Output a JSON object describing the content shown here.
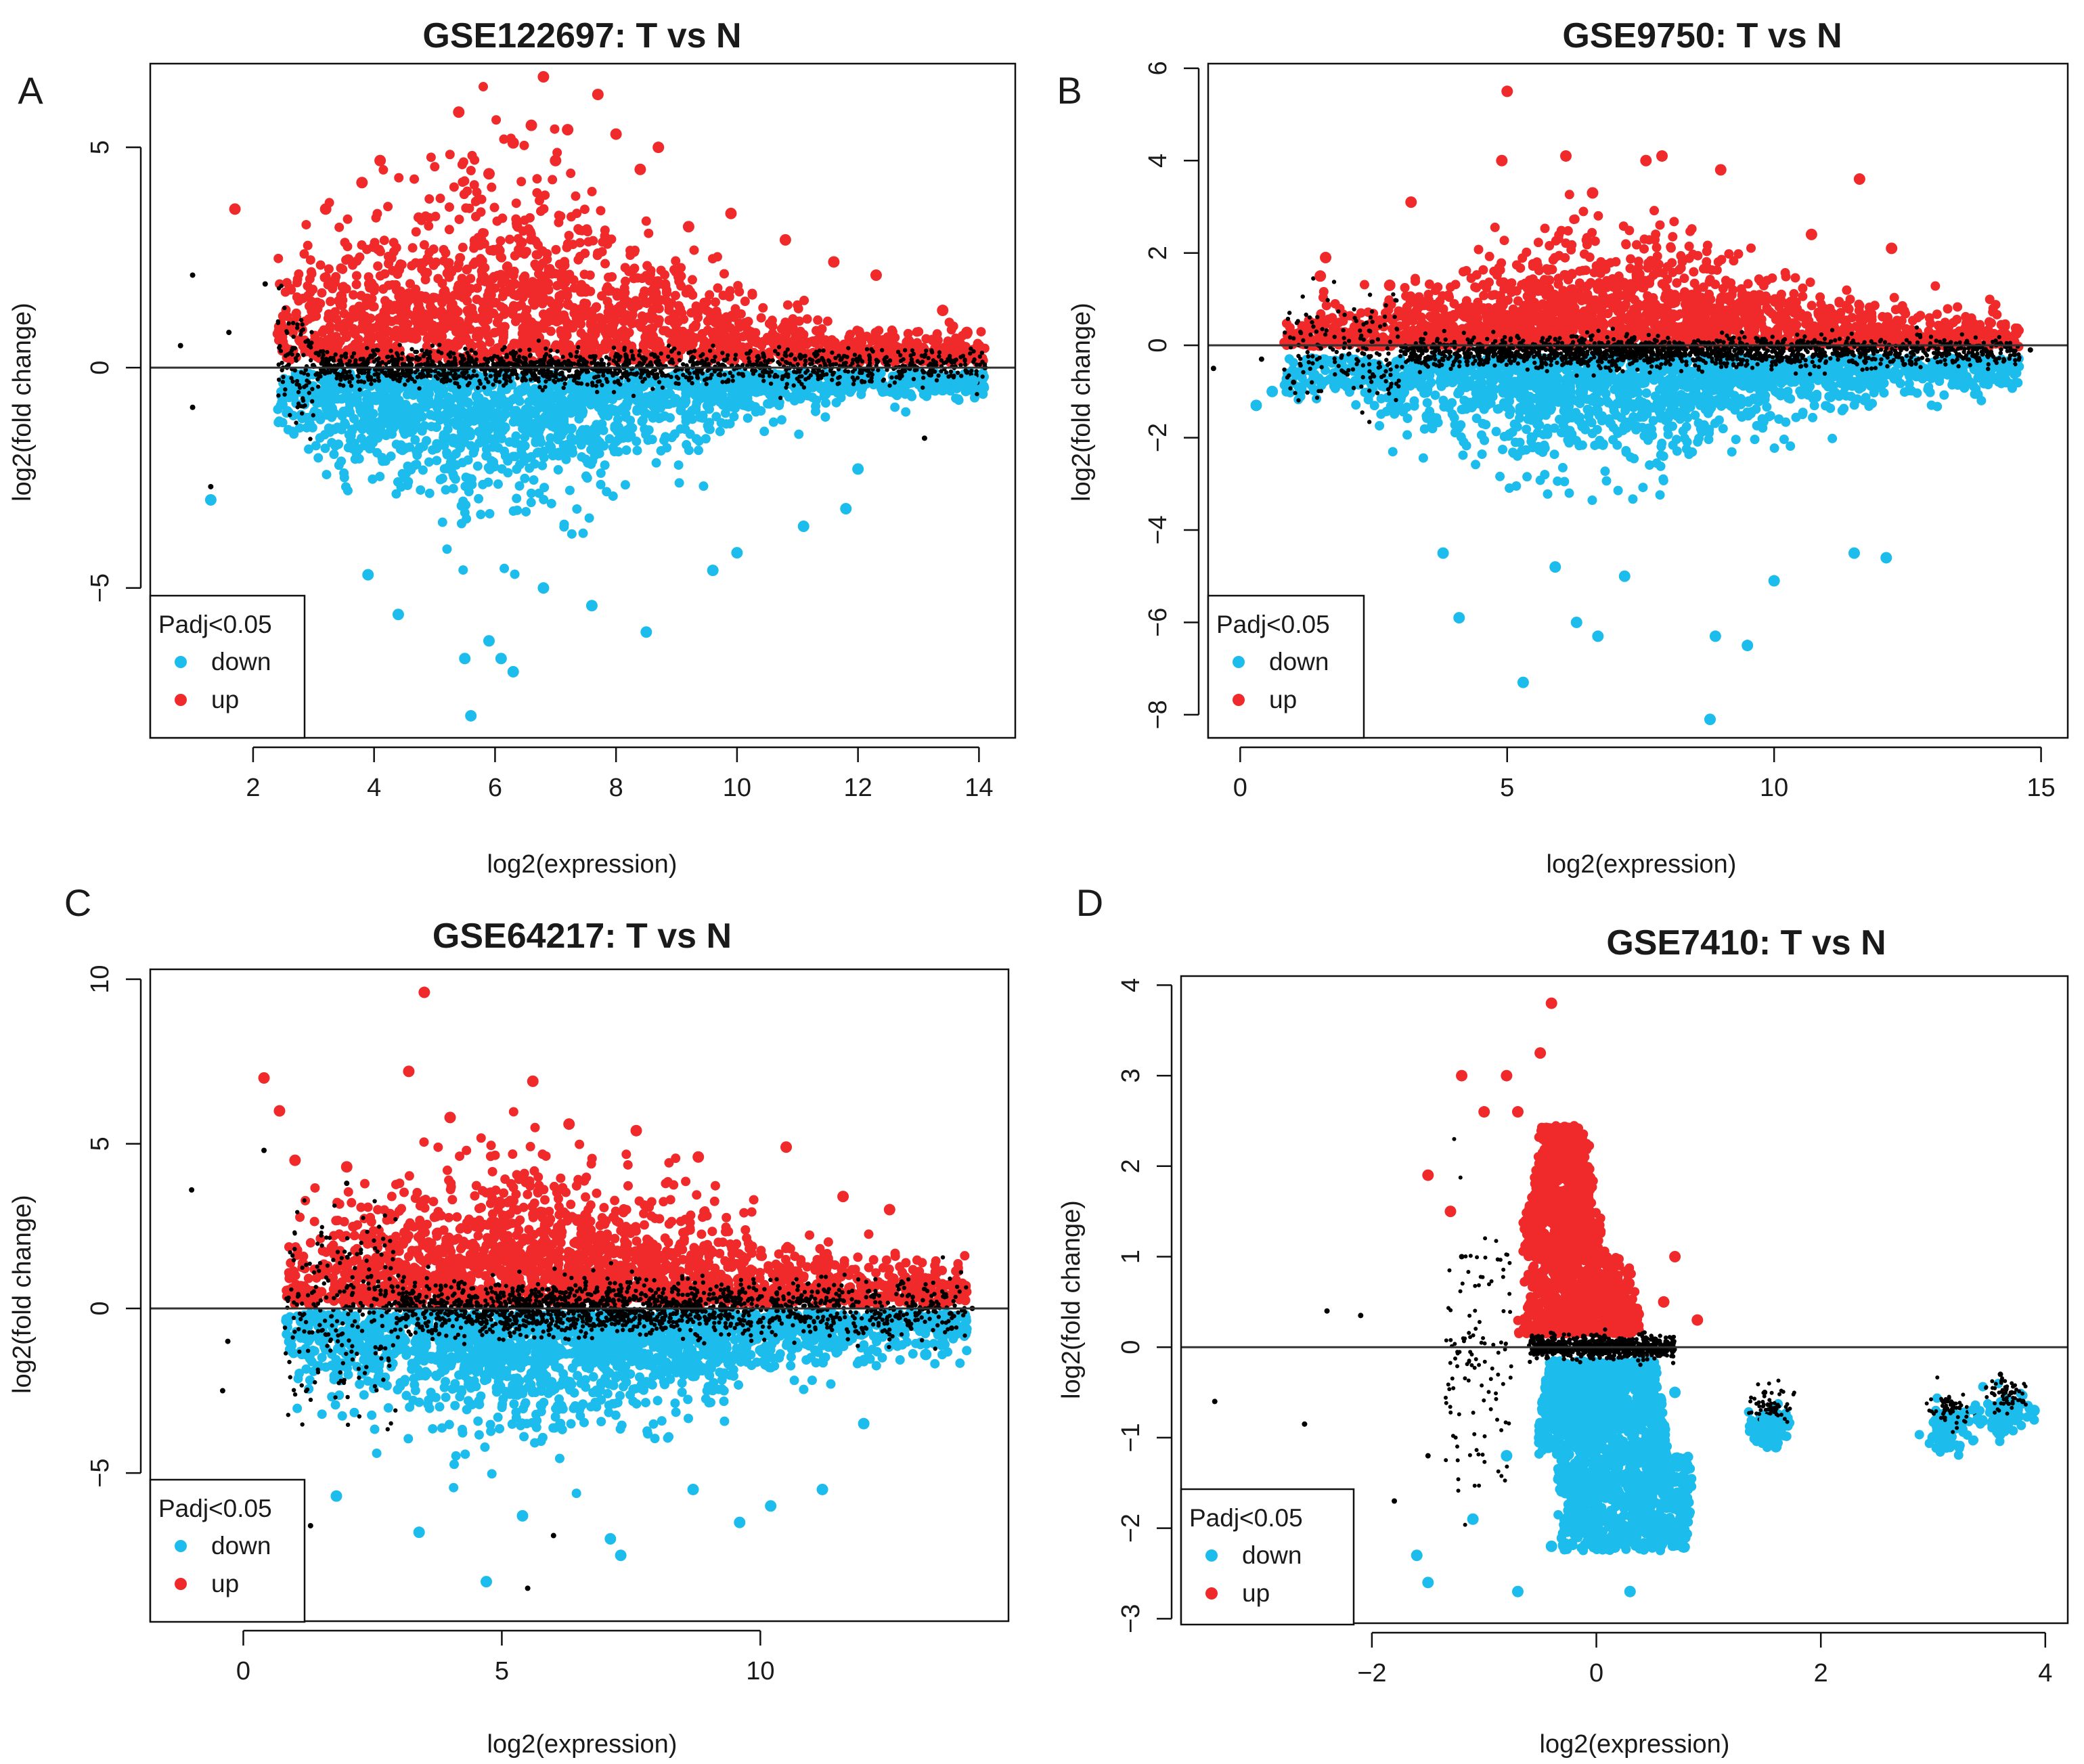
{
  "figure": {
    "panels": [
      {
        "letter": "A",
        "title": "GSE122697: T vs N",
        "xlabel": "log2(expression)",
        "ylabel": "log2(fold change)",
        "legend": {
          "title": "Padj<0.05",
          "entries": [
            {
              "label": "down",
              "color": "#1cbcec"
            },
            {
              "label": "up",
              "color": "#f02a2a"
            }
          ]
        }
      },
      {
        "letter": "B",
        "title": "GSE9750: T vs N",
        "xlabel": "log2(expression)",
        "ylabel": "log2(fold change)",
        "legend": {
          "title": "Padj<0.05",
          "entries": [
            {
              "label": "down",
              "color": "#1cbcec"
            },
            {
              "label": "up",
              "color": "#f02a2a"
            }
          ]
        }
      },
      {
        "letter": "C",
        "title": "GSE64217: T vs N",
        "xlabel": "log2(expression)",
        "ylabel": "log2(fold change)",
        "legend": {
          "title": "Padj<0.05",
          "entries": [
            {
              "label": "down",
              "color": "#1cbcec"
            },
            {
              "label": "up",
              "color": "#f02a2a"
            }
          ]
        }
      },
      {
        "letter": "D",
        "title": "GSE7410: T vs N",
        "xlabel": "log2(expression)",
        "ylabel": "log2(fold change)",
        "legend": {
          "title": "Padj<0.05",
          "entries": [
            {
              "label": "down",
              "color": "#1cbcec"
            },
            {
              "label": "up",
              "color": "#f02a2a"
            }
          ]
        }
      }
    ]
  },
  "chart_data": [
    {
      "type": "scatter",
      "kind": "MA-plot",
      "panel": "A",
      "title": "GSE122697: T vs N",
      "xlabel": "log2(expression)",
      "ylabel": "log2(fold change)",
      "xlim": [
        0.3,
        14.6
      ],
      "ylim": [
        -8.4,
        6.9
      ],
      "xticks": [
        2,
        4,
        6,
        8,
        10,
        12,
        14
      ],
      "yticks": [
        -5,
        0,
        5
      ],
      "reference_line_y": 0,
      "legend_position": "bottom-left",
      "colors": {
        "up": "#f02a2a",
        "down": "#1cbcec",
        "ns": "#000000"
      },
      "series": [
        {
          "name": "up",
          "points": [
            [
              6.8,
              6.6
            ],
            [
              7.7,
              6.2
            ],
            [
              5.4,
              5.8
            ],
            [
              6.6,
              5.5
            ],
            [
              7.2,
              5.4
            ],
            [
              6.3,
              5.1
            ],
            [
              4.1,
              4.7
            ],
            [
              8.0,
              5.3
            ],
            [
              8.7,
              5.0
            ],
            [
              1.7,
              3.6
            ],
            [
              9.9,
              3.5
            ],
            [
              10.8,
              2.9
            ],
            [
              12.3,
              2.1
            ],
            [
              13.4,
              1.3
            ],
            [
              13.8,
              0.8
            ],
            [
              11.6,
              2.4
            ],
            [
              5.9,
              4.4
            ],
            [
              8.4,
              4.5
            ],
            [
              3.2,
              3.6
            ],
            [
              9.2,
              3.2
            ],
            [
              3.8,
              4.2
            ],
            [
              7.0,
              4.7
            ]
          ]
        },
        {
          "name": "down",
          "points": [
            [
              5.6,
              -7.9
            ],
            [
              5.5,
              -6.6
            ],
            [
              6.1,
              -6.6
            ],
            [
              6.3,
              -6.9
            ],
            [
              8.5,
              -6.0
            ],
            [
              4.4,
              -5.6
            ],
            [
              5.9,
              -6.2
            ],
            [
              1.3,
              -3.0
            ],
            [
              10.0,
              -4.2
            ],
            [
              9.6,
              -4.6
            ],
            [
              7.6,
              -5.4
            ],
            [
              12.0,
              -2.3
            ],
            [
              11.8,
              -3.2
            ],
            [
              13.4,
              -0.5
            ],
            [
              13.9,
              -0.3
            ],
            [
              11.1,
              -3.6
            ],
            [
              3.9,
              -4.7
            ],
            [
              6.8,
              -5.0
            ]
          ]
        },
        {
          "name": "ns",
          "points": [
            [
              1.0,
              -0.9
            ],
            [
              0.8,
              0.5
            ],
            [
              1.0,
              2.1
            ],
            [
              1.3,
              -2.7
            ],
            [
              13.1,
              -1.6
            ],
            [
              13.8,
              -0.1
            ],
            [
              14.1,
              0.0
            ],
            [
              1.6,
              0.8
            ],
            [
              2.2,
              1.9
            ]
          ]
        }
      ]
    },
    {
      "type": "scatter",
      "kind": "MA-plot",
      "panel": "B",
      "title": "GSE9750: T vs N",
      "xlabel": "log2(expression)",
      "ylabel": "log2(fold change)",
      "xlim": [
        -0.6,
        15.5
      ],
      "ylim": [
        -8.5,
        6.1
      ],
      "xticks": [
        0,
        5,
        10,
        15
      ],
      "yticks": [
        -8,
        -6,
        -4,
        -2,
        0,
        2,
        4,
        6
      ],
      "reference_line_y": 0,
      "legend_position": "bottom-left",
      "colors": {
        "up": "#f02a2a",
        "down": "#1cbcec",
        "ns": "#000000"
      },
      "series": [
        {
          "name": "up",
          "points": [
            [
              5.0,
              5.5
            ],
            [
              6.1,
              4.1
            ],
            [
              7.9,
              4.1
            ],
            [
              7.6,
              4.0
            ],
            [
              9.0,
              3.8
            ],
            [
              11.6,
              3.6
            ],
            [
              4.9,
              4.0
            ],
            [
              6.6,
              3.3
            ],
            [
              3.2,
              3.1
            ],
            [
              12.2,
              2.1
            ],
            [
              1.6,
              1.9
            ],
            [
              1.5,
              1.5
            ],
            [
              2.8,
              1.3
            ],
            [
              10.7,
              2.4
            ]
          ]
        },
        {
          "name": "down",
          "points": [
            [
              8.8,
              -8.1
            ],
            [
              5.3,
              -7.3
            ],
            [
              6.3,
              -6.0
            ],
            [
              6.7,
              -6.3
            ],
            [
              9.5,
              -6.5
            ],
            [
              8.9,
              -6.3
            ],
            [
              4.1,
              -5.9
            ],
            [
              10.0,
              -5.1
            ],
            [
              12.1,
              -4.6
            ],
            [
              11.5,
              -4.5
            ],
            [
              0.3,
              -1.3
            ],
            [
              0.6,
              -1.0
            ],
            [
              14.4,
              -0.5
            ],
            [
              3.8,
              -4.5
            ],
            [
              5.9,
              -4.8
            ],
            [
              7.2,
              -5.0
            ]
          ]
        },
        {
          "name": "ns",
          "points": [
            [
              -0.5,
              -0.5
            ],
            [
              0.4,
              -0.3
            ],
            [
              14.8,
              -0.1
            ],
            [
              1.0,
              -0.8
            ],
            [
              14.5,
              -0.2
            ]
          ]
        }
      ]
    },
    {
      "type": "scatter",
      "kind": "MA-plot",
      "panel": "C",
      "title": "GSE64217: T vs N",
      "xlabel": "log2(expression)",
      "ylabel": "log2(fold change)",
      "xlim": [
        -1.8,
        14.8
      ],
      "ylim": [
        -9.5,
        10.3
      ],
      "xticks": [
        0,
        5,
        10
      ],
      "yticks": [
        -5,
        0,
        5,
        10
      ],
      "reference_line_y": 0,
      "legend_position": "bottom-left",
      "colors": {
        "up": "#f02a2a",
        "down": "#1cbcec",
        "ns": "#000000"
      },
      "series": [
        {
          "name": "up",
          "points": [
            [
              3.5,
              9.6
            ],
            [
              3.2,
              7.2
            ],
            [
              0.4,
              7.0
            ],
            [
              5.6,
              6.9
            ],
            [
              0.7,
              6.0
            ],
            [
              4.0,
              5.8
            ],
            [
              6.3,
              5.6
            ],
            [
              7.6,
              5.4
            ],
            [
              10.5,
              4.9
            ],
            [
              12.5,
              3.0
            ],
            [
              13.4,
              1.1
            ],
            [
              2.0,
              4.3
            ],
            [
              1.0,
              4.5
            ],
            [
              8.8,
              4.6
            ],
            [
              11.6,
              3.4
            ]
          ]
        },
        {
          "name": "down",
          "points": [
            [
              4.7,
              -8.3
            ],
            [
              7.3,
              -7.5
            ],
            [
              7.1,
              -7.0
            ],
            [
              9.6,
              -6.5
            ],
            [
              10.2,
              -6.0
            ],
            [
              11.2,
              -5.5
            ],
            [
              12.0,
              -3.5
            ],
            [
              3.4,
              -6.8
            ],
            [
              5.4,
              -6.3
            ],
            [
              1.8,
              -5.7
            ],
            [
              13.2,
              -1.4
            ],
            [
              8.7,
              -5.5
            ]
          ]
        },
        {
          "name": "ns",
          "points": [
            [
              5.5,
              -8.5
            ],
            [
              1.3,
              -6.6
            ],
            [
              -1.0,
              3.6
            ],
            [
              -0.3,
              -1.0
            ],
            [
              14.1,
              0.0
            ],
            [
              13.7,
              -0.6
            ],
            [
              0.4,
              4.8
            ],
            [
              -0.4,
              -2.5
            ],
            [
              2.0,
              3.8
            ],
            [
              6.0,
              -6.9
            ]
          ]
        }
      ]
    },
    {
      "type": "scatter",
      "kind": "MA-plot",
      "panel": "D",
      "title": "GSE7410: T vs N",
      "xlabel": "log2(expression)",
      "ylabel": "log2(fold change)",
      "xlim": [
        -3.7,
        4.2
      ],
      "ylim": [
        -3.05,
        4.1
      ],
      "xticks": [
        -2,
        0,
        2,
        4
      ],
      "yticks": [
        -3,
        -2,
        -1,
        0,
        1,
        2,
        3,
        4
      ],
      "reference_line_y": 0,
      "legend_position": "bottom-left",
      "colors": {
        "up": "#f02a2a",
        "down": "#1cbcec",
        "ns": "#000000"
      },
      "series": [
        {
          "name": "up",
          "points": [
            [
              -0.4,
              3.8
            ],
            [
              -0.5,
              3.25
            ],
            [
              -1.2,
              3.0
            ],
            [
              -0.8,
              3.0
            ],
            [
              -1.0,
              2.6
            ],
            [
              -0.7,
              2.6
            ],
            [
              -1.5,
              1.9
            ],
            [
              -1.3,
              1.5
            ],
            [
              -0.3,
              2.4
            ],
            [
              0.7,
              1.0
            ],
            [
              0.9,
              0.3
            ],
            [
              0.6,
              0.5
            ]
          ]
        },
        {
          "name": "down",
          "points": [
            [
              -0.7,
              -2.7
            ],
            [
              -1.6,
              -2.3
            ],
            [
              -1.5,
              -2.6
            ],
            [
              -1.1,
              -1.9
            ],
            [
              0.3,
              -2.7
            ],
            [
              0.5,
              -1.7
            ],
            [
              0.7,
              -0.5
            ],
            [
              1.5,
              -0.8
            ],
            [
              1.6,
              -1.1
            ],
            [
              3.0,
              -1.0
            ],
            [
              3.9,
              -0.7
            ],
            [
              3.4,
              -0.8
            ],
            [
              -0.4,
              -2.2
            ],
            [
              -0.8,
              -1.2
            ]
          ]
        },
        {
          "name": "ns",
          "points": [
            [
              -3.4,
              -0.6
            ],
            [
              -2.6,
              -0.85
            ],
            [
              -2.4,
              0.4
            ],
            [
              -2.1,
              0.35
            ],
            [
              -1.8,
              -1.7
            ],
            [
              -1.5,
              -1.2
            ],
            [
              -1.2,
              1.0
            ],
            [
              1.5,
              -0.5
            ],
            [
              3.1,
              -0.6
            ],
            [
              3.6,
              -0.3
            ],
            [
              3.8,
              -0.6
            ],
            [
              -0.1,
              -0.05
            ]
          ]
        }
      ]
    }
  ]
}
